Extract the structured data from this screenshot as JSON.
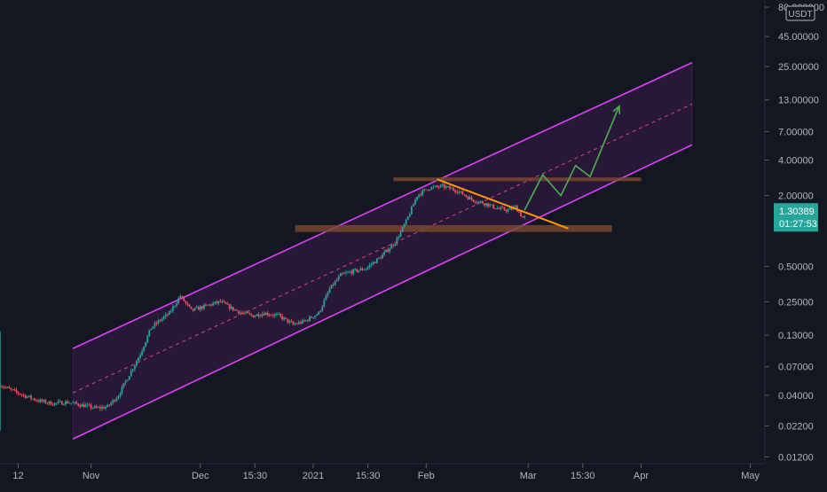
{
  "currency": "USDT",
  "price_axis": {
    "ticks": [
      "80.000000",
      "45.00000",
      "25.00000",
      "13.00000",
      "7.00000",
      "4.00000",
      "2.00000",
      "0.50000",
      "0.25000",
      "0.13000",
      "0.07000",
      "0.04000",
      "0.02200",
      "0.01200"
    ]
  },
  "time_axis": {
    "ticks": [
      "12",
      "Nov",
      "Dec",
      "15:30",
      "2021",
      "15:30",
      "Feb",
      "Mar",
      "15:30",
      "Apr",
      "May"
    ]
  },
  "last_price": {
    "price": "1.30389",
    "countdown": "01:27:53"
  },
  "colors": {
    "background": "#131722",
    "up": "#26a69a",
    "down": "#ef5350",
    "channel": "#e040fb",
    "channel_fill": "#3a1a4a",
    "midline": "#e0457b",
    "zone": "#7a4a2e",
    "trendline": "#ff9800",
    "projection": "#4caf50",
    "price_label_bg": "#26a69a"
  },
  "chart_data": {
    "type": "candlestick",
    "title": "",
    "y_scale": "log",
    "ylim": [
      0.0105,
      92
    ],
    "xlim": [
      "2020-10-07",
      "2021-05-05"
    ],
    "y_ticks": [
      80,
      45,
      25,
      13,
      7,
      4,
      2,
      0.5,
      0.25,
      0.13,
      0.07,
      0.04,
      0.022,
      0.012
    ],
    "x_ticks": [
      {
        "date": "2020-10-12",
        "label": "12"
      },
      {
        "date": "2020-11-01",
        "label": "Nov"
      },
      {
        "date": "2020-12-01",
        "label": "Dec"
      },
      {
        "date": "2020-12-16",
        "label": "15:30"
      },
      {
        "date": "2021-01-01",
        "label": "2021"
      },
      {
        "date": "2021-01-16",
        "label": "15:30"
      },
      {
        "date": "2021-02-01",
        "label": "Feb"
      },
      {
        "date": "2021-03-01",
        "label": "Mar"
      },
      {
        "date": "2021-03-16",
        "label": "15:30"
      },
      {
        "date": "2021-04-01",
        "label": "Apr"
      },
      {
        "date": "2021-05-01",
        "label": "May"
      }
    ],
    "price_path": [
      [
        "2020-10-07",
        0.05
      ],
      [
        "2020-10-10",
        0.045
      ],
      [
        "2020-10-14",
        0.04
      ],
      [
        "2020-10-18",
        0.036
      ],
      [
        "2020-10-22",
        0.034
      ],
      [
        "2020-10-26",
        0.035
      ],
      [
        "2020-10-30",
        0.033
      ],
      [
        "2020-11-03",
        0.031
      ],
      [
        "2020-11-06",
        0.032
      ],
      [
        "2020-11-09",
        0.04
      ],
      [
        "2020-11-12",
        0.06
      ],
      [
        "2020-11-15",
        0.09
      ],
      [
        "2020-11-18",
        0.15
      ],
      [
        "2020-11-20",
        0.17
      ],
      [
        "2020-11-23",
        0.2
      ],
      [
        "2020-11-26",
        0.28
      ],
      [
        "2020-11-29",
        0.21
      ],
      [
        "2020-12-03",
        0.23
      ],
      [
        "2020-12-07",
        0.25
      ],
      [
        "2020-12-10",
        0.22
      ],
      [
        "2020-12-13",
        0.2
      ],
      [
        "2020-12-16",
        0.19
      ],
      [
        "2020-12-19",
        0.2
      ],
      [
        "2020-12-23",
        0.19
      ],
      [
        "2020-12-27",
        0.16
      ],
      [
        "2020-12-30",
        0.17
      ],
      [
        "2021-01-03",
        0.2
      ],
      [
        "2021-01-06",
        0.32
      ],
      [
        "2021-01-09",
        0.42
      ],
      [
        "2021-01-12",
        0.45
      ],
      [
        "2021-01-16",
        0.48
      ],
      [
        "2021-01-20",
        0.6
      ],
      [
        "2021-01-24",
        0.8
      ],
      [
        "2021-01-27",
        1.2
      ],
      [
        "2021-01-30",
        2.0
      ],
      [
        "2021-02-02",
        2.3
      ],
      [
        "2021-02-06",
        2.4
      ],
      [
        "2021-02-10",
        2.2
      ],
      [
        "2021-02-14",
        1.85
      ],
      [
        "2021-02-18",
        1.7
      ],
      [
        "2021-02-21",
        1.55
      ],
      [
        "2021-02-24",
        1.5
      ],
      [
        "2021-02-26",
        1.6
      ],
      [
        "2021-02-28",
        1.3
      ]
    ],
    "annotations": {
      "channel_upper": [
        [
          "2020-10-27",
          0.1
        ],
        [
          "2021-04-15",
          27
        ]
      ],
      "channel_lower": [
        [
          "2020-10-27",
          0.017
        ],
        [
          "2021-04-15",
          5.4
        ]
      ],
      "channel_mid": [
        [
          "2020-10-27",
          0.042
        ],
        [
          "2021-04-15",
          12
        ]
      ],
      "resistance_zone": {
        "from": "2021-01-23",
        "to": "2021-04-01",
        "high": 2.85,
        "low": 2.65
      },
      "support_zone": {
        "from": "2020-12-27",
        "to": "2021-03-24",
        "high": 1.12,
        "low": 0.98
      },
      "trendline": [
        [
          "2021-02-04",
          2.75
        ],
        [
          "2021-03-12",
          1.05
        ]
      ],
      "projection": [
        [
          "2021-02-28",
          1.5
        ],
        [
          "2021-03-05",
          3.0
        ],
        [
          "2021-03-10",
          2.0
        ],
        [
          "2021-03-14",
          3.6
        ],
        [
          "2021-03-18",
          2.9
        ],
        [
          "2021-03-26",
          11.5
        ]
      ]
    }
  }
}
